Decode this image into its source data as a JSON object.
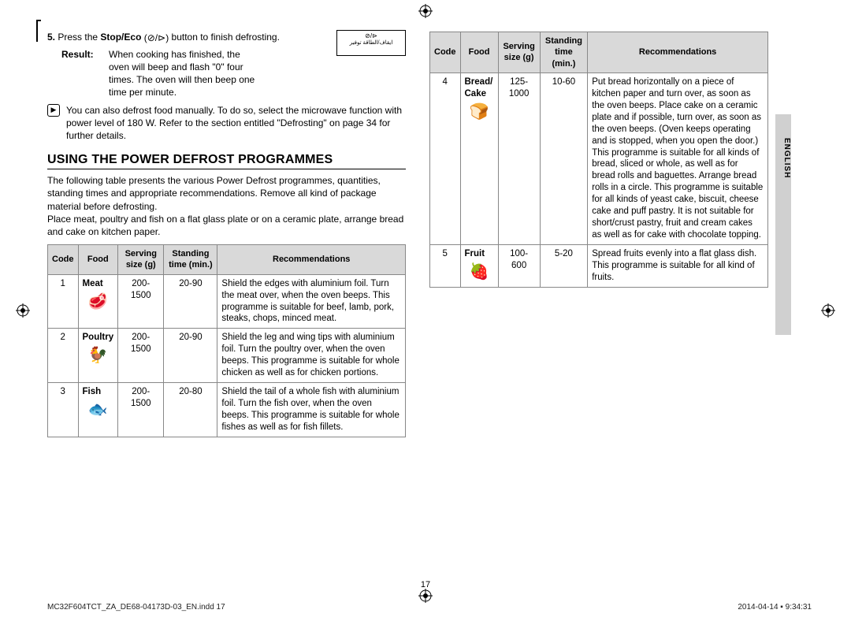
{
  "step5": {
    "num": "5.",
    "prefix": "Press the ",
    "button": "Stop/Eco",
    "suffix": " button to finish defrosting."
  },
  "display_box": {
    "line1": "⊘/⊳",
    "line2": "ايقاف/الطاقة توفير"
  },
  "result": {
    "label": "Result:",
    "text": "When cooking has finished, the oven will beep and flash \"0\" four times. The oven will then beep one time per minute."
  },
  "note": {
    "icon": "▶",
    "text": "You can also defrost food manually. To do so, select the microwave function with power level of 180 W. Refer to the section entitled \"Defrosting\" on page 34 for further details."
  },
  "section_title": "USING THE POWER DEFROST PROGRAMMES",
  "intro": "The following table presents the various Power Defrost programmes, quantities, standing times and appropriate recommendations. Remove all kind of package material before defrosting.\nPlace meat, poultry and fish on a flat glass plate or on a ceramic plate, arrange bread and cake on kitchen paper.",
  "headers": {
    "code": "Code",
    "food": "Food",
    "serving": "Serving size (g)",
    "standing": "Standing time (min.)",
    "rec": "Recommendations"
  },
  "rows_left": [
    {
      "code": "1",
      "food": "Meat",
      "icon": "🥩",
      "serving": "200-1500",
      "standing": "20-90",
      "rec": "Shield the edges with aluminium foil. Turn the meat over, when the oven beeps. This programme is suitable for beef, lamb, pork, steaks, chops, minced meat."
    },
    {
      "code": "2",
      "food": "Poultry",
      "icon": "🐓",
      "serving": "200-1500",
      "standing": "20-90",
      "rec": "Shield the leg and wing tips with aluminium foil. Turn the poultry over, when the oven beeps. This programme is suitable for whole chicken as well as for chicken portions."
    },
    {
      "code": "3",
      "food": "Fish",
      "icon": "🐟",
      "serving": "200-1500",
      "standing": "20-80",
      "rec": "Shield the tail of a whole fish with aluminium foil. Turn the fish over, when the oven beeps. This programme is suitable for whole fishes as well as for fish fillets."
    }
  ],
  "rows_right": [
    {
      "code": "4",
      "food": "Bread/ Cake",
      "icon": "🍞",
      "serving": "125-1000",
      "standing": "10-60",
      "rec": "Put bread horizontally on a piece of kitchen paper and turn over, as soon as the oven beeps. Place cake on a ceramic plate and if possible, turn over, as soon as the oven beeps. (Oven keeps operating and is stopped, when you open the door.) This programme is suitable for all kinds of bread, sliced or whole, as well as for bread rolls and baguettes. Arrange bread rolls in a circle. This programme is suitable for all kinds of yeast cake, biscuit, cheese cake and puff pastry. It is not suitable for short/crust pastry, fruit and cream cakes as well as for cake with chocolate topping."
    },
    {
      "code": "5",
      "food": "Fruit",
      "icon": "🍓",
      "serving": "100-600",
      "standing": "5-20",
      "rec": "Spread fruits evenly into a flat glass dish. This programme is suitable for all kind of fruits."
    }
  ],
  "side_label": "ENGLISH",
  "page_num": "17",
  "footer_left": "MC32F604TCT_ZA_DE68-04173D-03_EN.indd   17",
  "footer_right": "2014-04-14   ▪ 9:34:31",
  "colors": {
    "header_bg": "#d9d9d9",
    "border": "#888888",
    "tab": "#d0d0d0"
  }
}
